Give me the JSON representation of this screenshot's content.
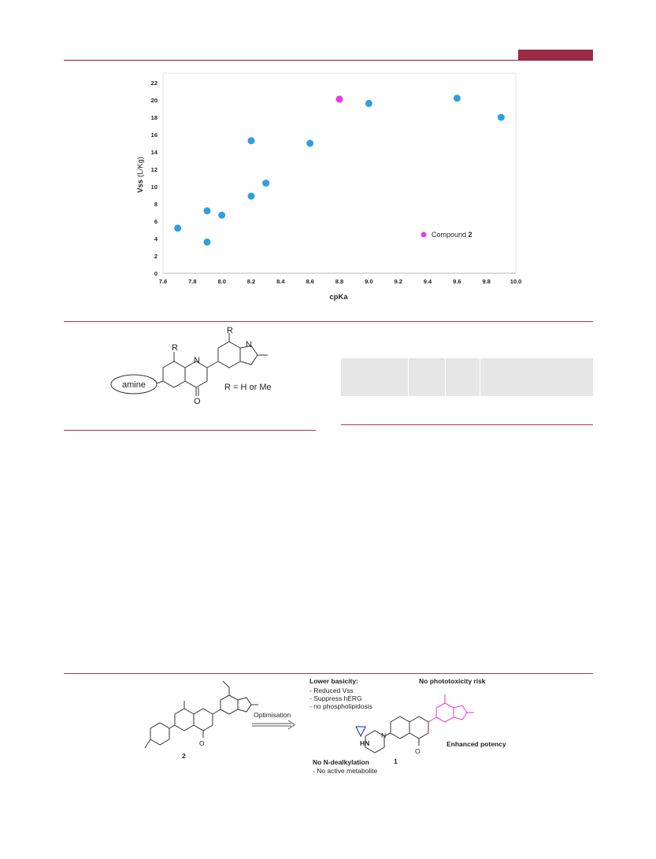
{
  "chart_data": {
    "type": "scatter",
    "xlabel": "cpKa",
    "ylabel": "Vss",
    "ylabel_unit": "(L/Kg)",
    "xlim": [
      7.6,
      10.0
    ],
    "ylim": [
      0,
      22
    ],
    "x_ticks": [
      "7.6",
      "7.8",
      "8.0",
      "8.2",
      "8.4",
      "8.6",
      "8.8",
      "9.0",
      "9.2",
      "9.4",
      "9.6",
      "9.8",
      "10.0"
    ],
    "y_ticks": [
      "0",
      "2",
      "4",
      "6",
      "8",
      "10",
      "12",
      "14",
      "16",
      "18",
      "20",
      "22"
    ],
    "grid": false,
    "legend_position": "bottom-right",
    "series": [
      {
        "color": "#2f9fe0",
        "points": [
          {
            "x": 7.7,
            "y": 5.2
          },
          {
            "x": 7.9,
            "y": 3.6
          },
          {
            "x": 7.9,
            "y": 7.2
          },
          {
            "x": 8.0,
            "y": 6.7
          },
          {
            "x": 8.2,
            "y": 15.3
          },
          {
            "x": 8.2,
            "y": 8.9
          },
          {
            "x": 8.3,
            "y": 10.4
          },
          {
            "x": 8.6,
            "y": 15.0
          },
          {
            "x": 9.0,
            "y": 19.6
          },
          {
            "x": 9.6,
            "y": 20.2
          },
          {
            "x": 9.9,
            "y": 18.0
          }
        ]
      },
      {
        "name": "Compound",
        "name_bold": "2",
        "color": "#e63ce6",
        "points": [
          {
            "x": 8.8,
            "y": 20.1
          }
        ]
      }
    ]
  },
  "scaffold": {
    "amine_label": "amine",
    "r_label": "R",
    "r_definition": "R = H or Me",
    "n_label": "N",
    "o_label": "O"
  },
  "scheme": {
    "compound_2_label": "2",
    "compound_1_label": "1",
    "arrow_label": "Optimisation",
    "lower_basicity": {
      "title": "Lower basicity:",
      "color": "#1a1ae6",
      "items": [
        "- Reduced Vss",
        "- Suppress hERG",
        "- no phospholipidosis"
      ]
    },
    "no_phototoxicity": {
      "text": "No phototoxicity risk",
      "color": "#e633e6"
    },
    "enhanced_potency": {
      "text": "Enhanced potency",
      "color": "#e633e6"
    },
    "no_dealkylation": {
      "title": "No N-dealkylation",
      "color": "#1a8c1a",
      "items": [
        "- No active metabolite"
      ]
    },
    "hn_label": "HN",
    "n_label": "N",
    "o_label": "O"
  }
}
